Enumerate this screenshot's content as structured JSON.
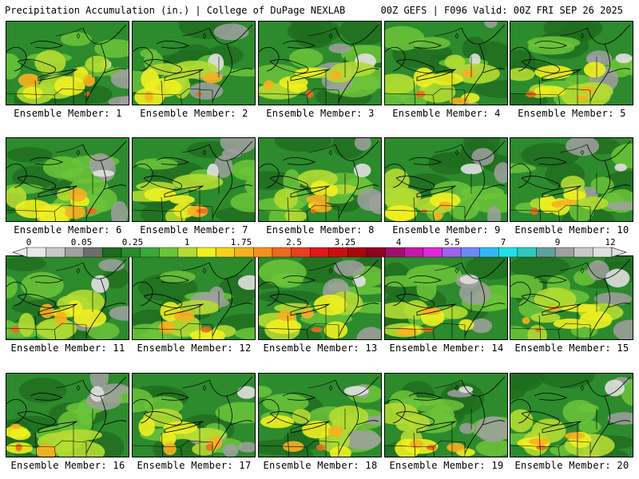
{
  "header": {
    "title_left": "Precipitation Accumulation (in.) | College of DuPage NEXLAB",
    "title_right": "00Z GEFS | F096 Valid: 00Z FRI SEP 26 2025"
  },
  "members": [
    "Ensemble Member: 1",
    "Ensemble Member: 2",
    "Ensemble Member: 3",
    "Ensemble Member: 4",
    "Ensemble Member: 5",
    "Ensemble Member: 6",
    "Ensemble Member: 7",
    "Ensemble Member: 8",
    "Ensemble Member: 9",
    "Ensemble Member: 10",
    "Ensemble Member: 11",
    "Ensemble Member: 12",
    "Ensemble Member: 13",
    "Ensemble Member: 14",
    "Ensemble Member: 15",
    "Ensemble Member: 16",
    "Ensemble Member: 17",
    "Ensemble Member: 18",
    "Ensemble Member: 19",
    "Ensemble Member: 20"
  ],
  "colorbar": {
    "tick_labels": [
      "0",
      "0.05",
      "0.25",
      "1",
      "1.75",
      "2.5",
      "3.25",
      "4",
      "5.5",
      "7",
      "9",
      "12"
    ],
    "colors": [
      "#e8e8e8",
      "#c8c8c8",
      "#a0a0a0",
      "#6e6e6e",
      "#1f6b1f",
      "#2d8a2d",
      "#3aa83a",
      "#6cc43a",
      "#b4dc32",
      "#f0f020",
      "#f8d020",
      "#f8b020",
      "#f89020",
      "#f06820",
      "#e84020",
      "#e01818",
      "#c81010",
      "#a80808",
      "#900020",
      "#a0106a",
      "#c818a8",
      "#e028d8",
      "#a060f0",
      "#7088f8",
      "#30b8f8",
      "#20e0e8",
      "#30c8c0",
      "#60a0a0",
      "#a0a0a0",
      "#c8c8c8",
      "#e0e0e0"
    ]
  }
}
